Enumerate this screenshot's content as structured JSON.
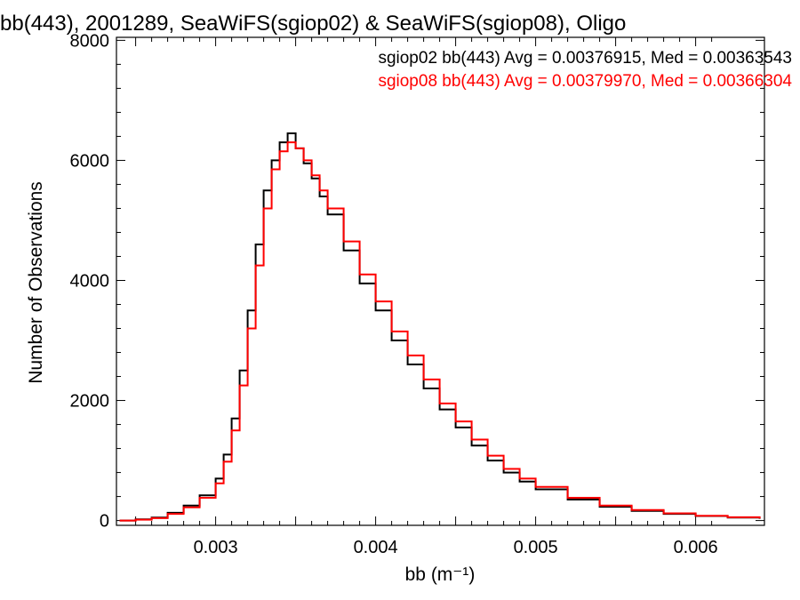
{
  "chart_data": {
    "type": "line",
    "title": "bb(443), 2001289, SeaWiFS(sgiop02) & SeaWiFS(sgiop08), Oligo",
    "xlabel": "bb (m⁻¹)",
    "ylabel": "Number of Observations",
    "xlim": [
      0.00238,
      0.00643
    ],
    "ylim": [
      -80,
      8050
    ],
    "xticks": [
      0.003,
      0.004,
      0.005,
      0.006
    ],
    "xtick_labels": [
      "0.003",
      "0.004",
      "0.005",
      "0.006"
    ],
    "yticks": [
      0,
      2000,
      4000,
      6000,
      8000
    ],
    "ytick_labels": [
      "0",
      "2000",
      "4000",
      "6000",
      "8000"
    ],
    "grid": false,
    "legend_placement": "top-right",
    "series": [
      {
        "name": "sgiop02 bb(443) Avg = 0.00376915, Med = 0.00363543",
        "color": "#000000",
        "x": [
          0.0024,
          0.0025,
          0.0026,
          0.0027,
          0.0028,
          0.0029,
          0.003,
          0.00305,
          0.0031,
          0.00315,
          0.0032,
          0.00325,
          0.0033,
          0.00335,
          0.0034,
          0.00345,
          0.0035,
          0.00355,
          0.0036,
          0.00365,
          0.0037,
          0.0038,
          0.0039,
          0.004,
          0.0041,
          0.0042,
          0.0043,
          0.0044,
          0.0045,
          0.0046,
          0.0047,
          0.0048,
          0.0049,
          0.005,
          0.0052,
          0.0054,
          0.0056,
          0.0058,
          0.006,
          0.0062,
          0.0064
        ],
        "y": [
          0,
          20,
          50,
          130,
          250,
          420,
          700,
          1100,
          1700,
          2500,
          3500,
          4600,
          5500,
          6000,
          6300,
          6450,
          6200,
          5950,
          5700,
          5400,
          5100,
          4500,
          3950,
          3500,
          3000,
          2600,
          2200,
          1850,
          1550,
          1250,
          1000,
          800,
          650,
          520,
          350,
          230,
          160,
          110,
          75,
          50,
          30
        ]
      },
      {
        "name": "sgiop08 bb(443) Avg = 0.00379970, Med = 0.00366304",
        "color": "#ff0000",
        "x": [
          0.0024,
          0.0025,
          0.0026,
          0.0027,
          0.0028,
          0.0029,
          0.003,
          0.00305,
          0.0031,
          0.00315,
          0.0032,
          0.00325,
          0.0033,
          0.00335,
          0.0034,
          0.00345,
          0.0035,
          0.00355,
          0.0036,
          0.00365,
          0.0037,
          0.0038,
          0.0039,
          0.004,
          0.0041,
          0.0042,
          0.0043,
          0.0044,
          0.0045,
          0.0046,
          0.0047,
          0.0048,
          0.0049,
          0.005,
          0.0052,
          0.0054,
          0.0056,
          0.0058,
          0.006,
          0.0062,
          0.0064
        ],
        "y": [
          0,
          15,
          40,
          110,
          220,
          380,
          620,
          980,
          1500,
          2250,
          3200,
          4250,
          5200,
          5850,
          6150,
          6300,
          6200,
          6000,
          5750,
          5500,
          5200,
          4650,
          4100,
          3650,
          3150,
          2750,
          2350,
          1950,
          1650,
          1350,
          1080,
          860,
          700,
          560,
          380,
          250,
          175,
          120,
          80,
          55,
          35
        ]
      }
    ]
  }
}
